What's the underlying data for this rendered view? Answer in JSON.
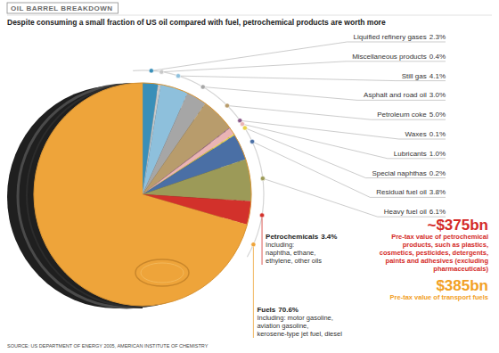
{
  "chart_data": {
    "type": "pie",
    "title": "OIL BARREL BREAKDOWN",
    "subtitle": "Despite consuming a small fraction of US oil compared with fuel, petrochemical products are worth more",
    "categories": [
      "Liquified refinery gases",
      "Miscellaneous products",
      "Still gas",
      "Asphalt and road oil",
      "Petroleum coke",
      "Waxes",
      "Lubricants",
      "Special naphthas",
      "Residual fuel oil",
      "Heavy fuel oil",
      "Petrochemicals",
      "Fuels"
    ],
    "values": [
      2.3,
      0.4,
      4.1,
      3.0,
      5.0,
      0.1,
      1.0,
      0.2,
      3.8,
      6.1,
      3.4,
      70.6
    ],
    "value_labels": [
      "2.3%",
      "0.4%",
      "4.1%",
      "3.0%",
      "5.0%",
      "0.1%",
      "1.0%",
      "0.2%",
      "3.8%",
      "6.1%",
      "3.4%",
      "70.6%"
    ],
    "colors": [
      "#3a8fb8",
      "#c8c8c8",
      "#8ec0dc",
      "#a6a6a6",
      "#b89c6c",
      "#8a5a8a",
      "#eab4b4",
      "#e8d24a",
      "#4a6fa5",
      "#9c9a58",
      "#d2312b",
      "#eea43a"
    ],
    "data_labels": true,
    "details": [
      null,
      null,
      null,
      null,
      null,
      null,
      null,
      null,
      null,
      null,
      [
        "Including:",
        "naphtha, ethane,",
        "ethylene, other oils"
      ],
      [
        "Including: motor gasoline,",
        "aviation gasoline,",
        "kerosene-type jet fuel, diesel"
      ]
    ],
    "annotations": [
      {
        "label": "~$375bn",
        "color": "#d42a27",
        "text": [
          "Pre-tax value of petrochemical",
          "products, such as plastics,",
          "cosmetics, pesticides, detergents,",
          "paints and adhesives (excluding",
          "pharmaceuticals)"
        ]
      },
      {
        "label": "$385bn",
        "color": "#f2a024",
        "text": [
          "Pre-tax value of transport fuels"
        ]
      }
    ],
    "source": "SOURCE: US DEPARTMENT OF ENERGY 2005, AMERICAN INSTITUTE OF CHEMISTRY"
  }
}
